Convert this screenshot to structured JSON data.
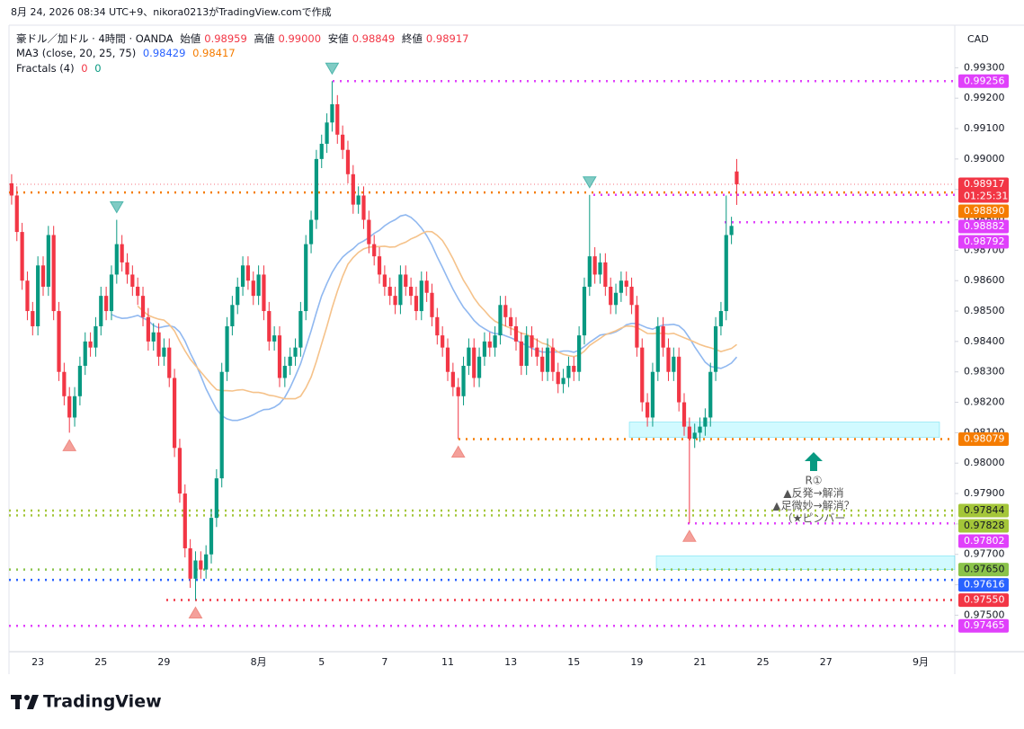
{
  "chart_data": {
    "type": "candlestick",
    "watermark": "8月 24, 2026 08:34 UTC+9、nikora0213がTradingView.comで作成",
    "symbol": "豪ドル／加ドル · 4時間 · OANDA",
    "ohlc_legend": [
      {
        "label": "始値",
        "value": "0.98959"
      },
      {
        "label": "高値",
        "value": "0.99000"
      },
      {
        "label": "安値",
        "value": "0.98849"
      },
      {
        "label": "終値",
        "value": "0.98917"
      }
    ],
    "ma_legend": {
      "name": "MA3 (close, 20, 25, 75)",
      "values": [
        "0.98429",
        "0.98417"
      ]
    },
    "fractal_legend": {
      "name": "Fractals (4)",
      "values": [
        "0",
        "0"
      ]
    },
    "currency": "CAD",
    "logo": "TradingView",
    "up_color": "#089981",
    "down_color": "#f23645",
    "categories": [
      null,
      null,
      null,
      null,
      null,
      "23",
      null,
      null,
      null,
      null,
      null,
      null,
      null,
      null,
      null,
      null,
      null,
      "25",
      null,
      null,
      null,
      null,
      null,
      null,
      null,
      null,
      null,
      null,
      null,
      "29",
      null,
      null,
      null,
      null,
      null,
      null,
      null,
      null,
      null,
      null,
      null,
      null,
      null,
      null,
      null,
      null,
      null,
      "8月",
      null,
      null,
      null,
      null,
      null,
      null,
      null,
      null,
      null,
      null,
      null,
      "5",
      null,
      null,
      null,
      null,
      null,
      null,
      null,
      null,
      null,
      null,
      null,
      "7",
      null,
      null,
      null,
      null,
      null,
      null,
      null,
      null,
      null,
      null,
      null,
      "11",
      null,
      null,
      null,
      null,
      null,
      null,
      null,
      null,
      null,
      null,
      null,
      "13",
      null,
      null,
      null,
      null,
      null,
      null,
      null,
      null,
      null,
      null,
      null,
      "15",
      null,
      null,
      null,
      null,
      null,
      null,
      null,
      null,
      null,
      null,
      null,
      "19",
      null,
      null,
      null,
      null,
      null,
      null,
      null,
      null,
      null,
      null,
      null,
      "21",
      null,
      null,
      null,
      null,
      null,
      null,
      null,
      null,
      null,
      null,
      null,
      "25",
      null,
      null,
      null,
      null,
      null,
      null,
      null,
      null,
      null,
      null,
      null,
      "27",
      null,
      null,
      null,
      null,
      null,
      null,
      null,
      null,
      null,
      null,
      null,
      null,
      null,
      null,
      null,
      null,
      null,
      "9月",
      null,
      null,
      null,
      null,
      null,
      null
    ],
    "open": [
      0.9892,
      0.9888,
      0.9876,
      0.986,
      0.985,
      0.9845,
      0.9865,
      0.9858,
      0.9875,
      0.985,
      0.983,
      0.9822,
      0.9815,
      0.9822,
      0.9832,
      0.984,
      0.9838,
      0.9845,
      0.9855,
      0.985,
      0.9862,
      0.9872,
      0.9866,
      0.9862,
      0.9858,
      0.9855,
      0.9848,
      0.984,
      0.9843,
      0.9835,
      0.9838,
      0.9828,
      0.9805,
      0.979,
      0.9772,
      0.9762,
      0.9768,
      0.9765,
      0.977,
      0.9782,
      0.9795,
      0.983,
      0.9845,
      0.9852,
      0.9858,
      0.9865,
      0.986,
      0.9855,
      0.9862,
      0.985,
      0.984,
      0.9842,
      0.9828,
      0.9832,
      0.9835,
      0.9838,
      0.985,
      0.9872,
      0.988,
      0.99,
      0.9905,
      0.9912,
      0.9918,
      0.9908,
      0.9903,
      0.9895,
      0.9885,
      0.9888,
      0.988,
      0.9872,
      0.9868,
      0.9862,
      0.9858,
      0.9855,
      0.9852,
      0.9862,
      0.9858,
      0.9855,
      0.985,
      0.986,
      0.9856,
      0.9848,
      0.9842,
      0.9838,
      0.983,
      0.9825,
      0.9822,
      0.9832,
      0.9838,
      0.9828,
      0.9835,
      0.984,
      0.9838,
      0.9842,
      0.9852,
      0.9848,
      0.9845,
      0.984,
      0.9832,
      0.9842,
      0.9838,
      0.9835,
      0.983,
      0.9838,
      0.983,
      0.9826,
      0.9828,
      0.9832,
      0.983,
      0.9842,
      0.9858,
      0.9868,
      0.9862,
      0.9866,
      0.9858,
      0.9852,
      0.9856,
      0.986,
      0.9858,
      0.9852,
      0.9838,
      0.982,
      0.9815,
      0.983,
      0.9845,
      0.9838,
      0.983,
      0.9835,
      0.982,
      0.9812,
      0.9808,
      0.981,
      0.9812,
      0.9815,
      0.983,
      0.9845,
      0.985,
      0.9875,
      0.98959,
      null,
      null,
      null,
      null,
      null,
      null,
      null,
      null,
      null,
      null,
      null,
      null,
      null,
      null,
      null,
      null,
      null,
      null,
      null,
      null,
      null,
      null,
      null,
      null,
      null,
      null,
      null,
      null,
      null,
      null,
      null,
      null,
      null,
      null,
      null,
      null,
      null,
      null,
      null,
      null,
      null
    ],
    "high": [
      0.9895,
      0.9891,
      0.9879,
      0.9863,
      0.9853,
      0.9868,
      0.9868,
      0.9878,
      0.9878,
      0.9853,
      0.9833,
      0.9825,
      0.9825,
      0.9835,
      0.9843,
      0.9843,
      0.9848,
      0.9858,
      0.9858,
      0.9865,
      0.988,
      0.9875,
      0.9869,
      0.9865,
      0.9861,
      0.9858,
      0.9851,
      0.9846,
      0.9846,
      0.9841,
      0.9841,
      0.9831,
      0.9808,
      0.9793,
      0.9775,
      0.9771,
      0.9771,
      0.9773,
      0.9785,
      0.9798,
      0.9833,
      0.9848,
      0.9855,
      0.9861,
      0.9868,
      0.9868,
      0.9863,
      0.9865,
      0.9865,
      0.9853,
      0.9845,
      0.9845,
      0.9835,
      0.9838,
      0.9841,
      0.9853,
      0.9875,
      0.9883,
      0.9903,
      0.9908,
      0.9915,
      0.99256,
      0.9921,
      0.9911,
      0.9906,
      0.9898,
      0.9891,
      0.9891,
      0.9883,
      0.9875,
      0.9871,
      0.9865,
      0.9861,
      0.9858,
      0.9865,
      0.9865,
      0.9861,
      0.9858,
      0.9863,
      0.9863,
      0.9859,
      0.9851,
      0.9845,
      0.9841,
      0.9833,
      0.9828,
      0.9835,
      0.9841,
      0.9841,
      0.9838,
      0.9843,
      0.9843,
      0.9845,
      0.9855,
      0.9855,
      0.9851,
      0.9848,
      0.9843,
      0.9845,
      0.9845,
      0.9841,
      0.9838,
      0.9841,
      0.9841,
      0.9833,
      0.9831,
      0.9835,
      0.9835,
      0.9845,
      0.9861,
      0.98882,
      0.9871,
      0.9869,
      0.9869,
      0.9861,
      0.9859,
      0.9863,
      0.9863,
      0.9861,
      0.9855,
      0.9841,
      0.9823,
      0.9833,
      0.9848,
      0.9848,
      0.9841,
      0.9838,
      0.9838,
      0.9823,
      0.9815,
      0.9813,
      0.9815,
      0.9818,
      0.9833,
      0.9848,
      0.9853,
      0.9888,
      0.9881,
      0.99,
      null,
      null,
      null,
      null,
      null,
      null,
      null,
      null,
      null,
      null,
      null,
      null,
      null,
      null,
      null,
      null,
      null,
      null,
      null,
      null,
      null,
      null,
      null,
      null,
      null,
      null,
      null,
      null,
      null,
      null,
      null,
      null,
      null,
      null,
      null,
      null,
      null,
      null,
      null,
      null,
      null
    ],
    "low": [
      0.9885,
      0.9873,
      0.9857,
      0.9847,
      0.9842,
      0.9842,
      0.9855,
      0.9855,
      0.9847,
      0.9827,
      0.9819,
      0.981,
      0.9812,
      0.9819,
      0.9829,
      0.9835,
      0.9835,
      0.9842,
      0.9847,
      0.9847,
      0.9859,
      0.9863,
      0.9859,
      0.9855,
      0.9852,
      0.9845,
      0.9837,
      0.9837,
      0.9832,
      0.9832,
      0.9825,
      0.9802,
      0.9787,
      0.9769,
      0.9759,
      0.9755,
      0.9762,
      0.9762,
      0.9767,
      0.9779,
      0.9792,
      0.9827,
      0.9842,
      0.9849,
      0.9855,
      0.9857,
      0.9852,
      0.9852,
      0.9847,
      0.9837,
      0.9837,
      0.9825,
      0.9825,
      0.9829,
      0.9832,
      0.9835,
      0.9847,
      0.9869,
      0.9877,
      0.9897,
      0.9902,
      0.9909,
      0.9905,
      0.99,
      0.9892,
      0.9882,
      0.9882,
      0.9877,
      0.9869,
      0.9865,
      0.9859,
      0.9855,
      0.9852,
      0.9849,
      0.9849,
      0.9855,
      0.9852,
      0.9847,
      0.9847,
      0.9853,
      0.9845,
      0.9839,
      0.9835,
      0.9827,
      0.9822,
      0.98079,
      0.9819,
      0.9829,
      0.9825,
      0.9825,
      0.9832,
      0.9835,
      0.9835,
      0.9839,
      0.9845,
      0.9842,
      0.9837,
      0.9829,
      0.9829,
      0.9835,
      0.9832,
      0.9827,
      0.9827,
      0.9827,
      0.9823,
      0.9823,
      0.9825,
      0.9827,
      0.9827,
      0.9839,
      0.9855,
      0.9859,
      0.9859,
      0.9855,
      0.9849,
      0.9849,
      0.9853,
      0.9855,
      0.9849,
      0.9835,
      0.9817,
      0.9812,
      0.9812,
      0.9827,
      0.9835,
      0.9827,
      0.9827,
      0.9817,
      0.9809,
      0.97802,
      0.9805,
      0.9807,
      0.9809,
      0.9812,
      0.9827,
      0.9842,
      0.9847,
      0.9872,
      0.98849,
      null,
      null,
      null,
      null,
      null,
      null,
      null,
      null,
      null,
      null,
      null,
      null,
      null,
      null,
      null,
      null,
      null,
      null,
      null,
      null,
      null,
      null,
      null,
      null,
      null,
      null,
      null,
      null,
      null,
      null,
      null,
      null,
      null,
      null,
      null,
      null,
      null,
      null,
      null,
      null,
      null
    ],
    "close": [
      0.9888,
      0.9876,
      0.986,
      0.985,
      0.9845,
      0.9865,
      0.9858,
      0.9875,
      0.985,
      0.983,
      0.9822,
      0.9815,
      0.9822,
      0.9832,
      0.984,
      0.9838,
      0.9845,
      0.9855,
      0.985,
      0.9862,
      0.9872,
      0.9866,
      0.9862,
      0.9858,
      0.9855,
      0.9848,
      0.984,
      0.9843,
      0.9835,
      0.9838,
      0.9828,
      0.9805,
      0.979,
      0.9772,
      0.9762,
      0.9768,
      0.9765,
      0.977,
      0.9782,
      0.9795,
      0.983,
      0.9845,
      0.9852,
      0.9858,
      0.9865,
      0.986,
      0.9855,
      0.9862,
      0.985,
      0.984,
      0.9842,
      0.9828,
      0.9832,
      0.9835,
      0.9838,
      0.985,
      0.9872,
      0.988,
      0.99,
      0.9905,
      0.9912,
      0.9918,
      0.9908,
      0.9903,
      0.9895,
      0.9885,
      0.9888,
      0.988,
      0.9872,
      0.9868,
      0.9862,
      0.9858,
      0.9855,
      0.9852,
      0.9862,
      0.9858,
      0.9855,
      0.985,
      0.986,
      0.9856,
      0.9848,
      0.9842,
      0.9838,
      0.983,
      0.9825,
      0.9822,
      0.9832,
      0.9838,
      0.9828,
      0.9835,
      0.984,
      0.9838,
      0.9842,
      0.9852,
      0.9848,
      0.9845,
      0.984,
      0.9832,
      0.9842,
      0.9838,
      0.9835,
      0.983,
      0.9838,
      0.983,
      0.9826,
      0.9828,
      0.9832,
      0.983,
      0.9842,
      0.9858,
      0.9868,
      0.9862,
      0.9866,
      0.9858,
      0.9852,
      0.9856,
      0.986,
      0.9858,
      0.9852,
      0.9838,
      0.982,
      0.9815,
      0.983,
      0.9845,
      0.9838,
      0.983,
      0.9835,
      0.982,
      0.9812,
      0.9808,
      0.981,
      0.9812,
      0.9815,
      0.983,
      0.9845,
      0.985,
      0.9875,
      0.9878,
      0.98917,
      null,
      null,
      null,
      null,
      null,
      null,
      null,
      null,
      null,
      null,
      null,
      null,
      null,
      null,
      null,
      null,
      null,
      null,
      null,
      null,
      null,
      null,
      null,
      null,
      null,
      null,
      null,
      null,
      null,
      null,
      null,
      null,
      null,
      null,
      null,
      null,
      null,
      null,
      null,
      null,
      null
    ],
    "ylim": [
      0.9738,
      0.9944
    ],
    "yticks": [
      {
        "value": 0.993,
        "label": "0.99300"
      },
      {
        "value": 0.992,
        "label": "0.99200"
      },
      {
        "value": 0.991,
        "label": "0.99100"
      },
      {
        "value": 0.99,
        "label": "0.99000"
      },
      {
        "value": 0.989,
        "label": "0.98900"
      },
      {
        "value": 0.988,
        "label": "0.98800"
      },
      {
        "value": 0.987,
        "label": "0.98700"
      },
      {
        "value": 0.986,
        "label": "0.98600"
      },
      {
        "value": 0.985,
        "label": "0.98500"
      },
      {
        "value": 0.984,
        "label": "0.98400"
      },
      {
        "value": 0.983,
        "label": "0.98300"
      },
      {
        "value": 0.982,
        "label": "0.98200"
      },
      {
        "value": 0.981,
        "label": "0.98100"
      },
      {
        "value": 0.98,
        "label": "0.98000"
      },
      {
        "value": 0.979,
        "label": "0.97900"
      },
      {
        "value": 0.978,
        "label": "0.97800"
      },
      {
        "value": 0.977,
        "label": "0.97700"
      },
      {
        "value": 0.976,
        "label": "0.97600"
      },
      {
        "value": 0.975,
        "label": "0.97500"
      }
    ],
    "levels": [
      {
        "value": 0.99256,
        "label": "0.99256",
        "color": "#e040fb",
        "text_color": "#ffffff"
      },
      {
        "value": 0.98917,
        "label": "0.98917",
        "color": "#f23645",
        "text_color": "#ffffff",
        "countdown": "01:25:31"
      },
      {
        "value": 0.9889,
        "label": "0.98890",
        "color": "#f57c00",
        "text_color": "#ffffff"
      },
      {
        "value": 0.98882,
        "label": "0.98882",
        "color": "#e040fb",
        "text_color": "#ffffff"
      },
      {
        "value": 0.98792,
        "label": "0.98792",
        "color": "#e040fb",
        "text_color": "#ffffff"
      },
      {
        "value": 0.98079,
        "label": "0.98079",
        "color": "#f57c00",
        "text_color": "#ffffff"
      },
      {
        "value": 0.97844,
        "label": "0.97844",
        "color": "#a4c639",
        "text_color": "#131722"
      },
      {
        "value": 0.97828,
        "label": "0.97828",
        "color": "#a4c639",
        "text_color": "#131722"
      },
      {
        "value": 0.97802,
        "label": "0.97802",
        "color": "#e040fb",
        "text_color": "#ffffff"
      },
      {
        "value": 0.9765,
        "label": "0.97650",
        "color": "#8bc34a",
        "text_color": "#131722"
      },
      {
        "value": 0.97616,
        "label": "0.97616",
        "color": "#2962ff",
        "text_color": "#ffffff"
      },
      {
        "value": 0.9755,
        "label": "0.97550",
        "color": "#f23645",
        "text_color": "#ffffff"
      },
      {
        "value": 0.97465,
        "label": "0.97465",
        "color": "#e040fb",
        "text_color": "#ffffff"
      }
    ],
    "zones": [
      {
        "from": 0.98135,
        "to": 0.98085
      },
      {
        "from": 0.97695,
        "to": 0.9765
      }
    ],
    "annotations": [
      "R①",
      "▲反発→解消",
      "▲足微妙→解消？",
      "（★ピンバー"
    ]
  }
}
